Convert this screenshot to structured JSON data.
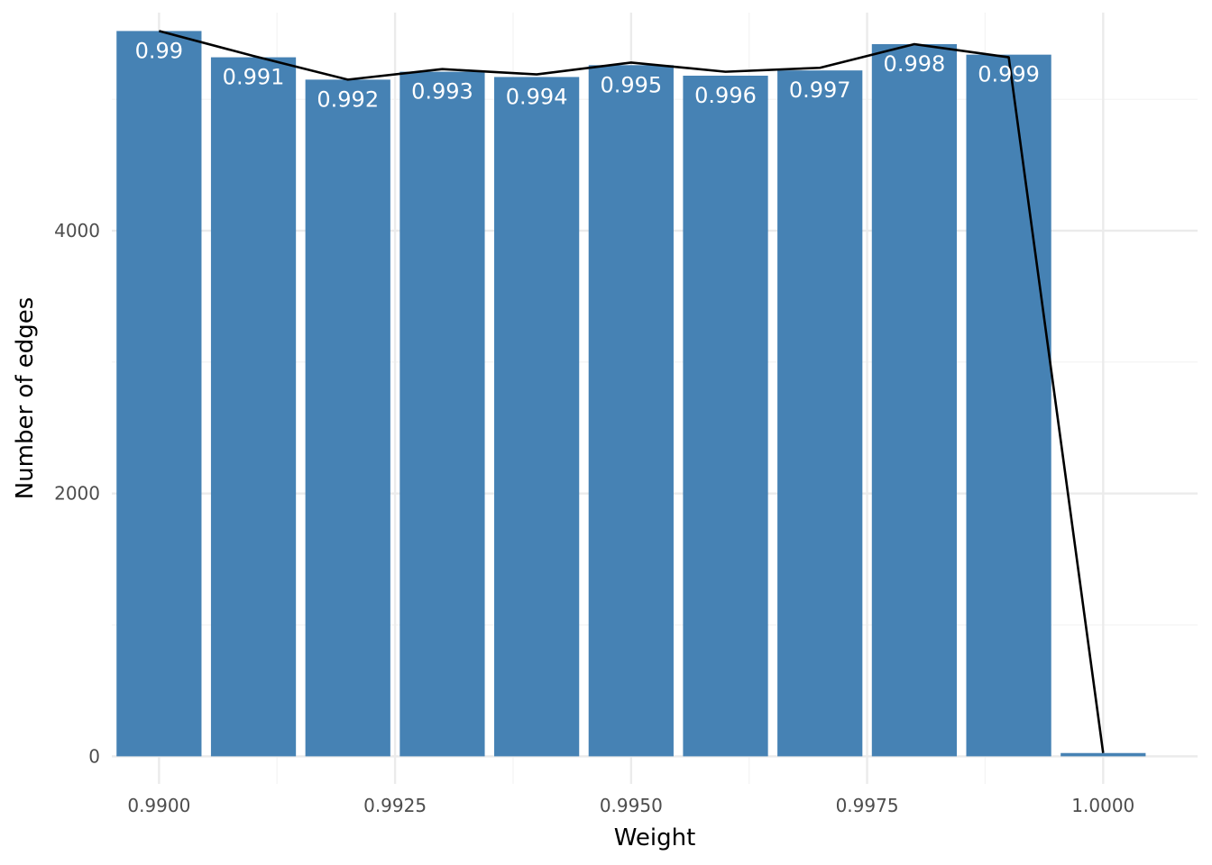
{
  "colors": {
    "bar": "#4682b4",
    "line": "#000000",
    "grid_major": "#ebebeb",
    "grid_minor": "#f4f4f4",
    "label": "#ffffff"
  },
  "chart_data": {
    "type": "bar",
    "title": "",
    "xlabel": "Weight",
    "ylabel": "Number of edges",
    "xlim": [
      0.9895,
      1.001
    ],
    "ylim": [
      -210,
      5660
    ],
    "x_ticks": [
      {
        "value": 0.99,
        "label": "0.9900"
      },
      {
        "value": 0.9925,
        "label": "0.9925"
      },
      {
        "value": 0.995,
        "label": "0.9950"
      },
      {
        "value": 0.9975,
        "label": "0.9975"
      },
      {
        "value": 1.0,
        "label": "1.0000"
      }
    ],
    "y_ticks": [
      {
        "value": 0,
        "label": "0"
      },
      {
        "value": 2000,
        "label": "2000"
      },
      {
        "value": 4000,
        "label": "4000"
      }
    ],
    "y_minor_ticks": [
      1000,
      3000,
      5000
    ],
    "x_minor_ticks": [
      0.99125,
      0.99375,
      0.99625,
      0.99875
    ],
    "bar_width": 0.0009,
    "grid": true,
    "legend": "none",
    "bars": [
      {
        "x": 0.99,
        "y": 5520,
        "label": "0.99"
      },
      {
        "x": 0.991,
        "y": 5320,
        "label": "0.991"
      },
      {
        "x": 0.992,
        "y": 5150,
        "label": "0.992"
      },
      {
        "x": 0.993,
        "y": 5210,
        "label": "0.993"
      },
      {
        "x": 0.994,
        "y": 5170,
        "label": "0.994"
      },
      {
        "x": 0.995,
        "y": 5260,
        "label": "0.995"
      },
      {
        "x": 0.996,
        "y": 5180,
        "label": "0.996"
      },
      {
        "x": 0.997,
        "y": 5220,
        "label": "0.997"
      },
      {
        "x": 0.998,
        "y": 5420,
        "label": "0.998"
      },
      {
        "x": 0.999,
        "y": 5340,
        "label": "0.999"
      },
      {
        "x": 1.0,
        "y": 25,
        "label": ""
      }
    ],
    "line": {
      "x": [
        0.99,
        0.991,
        0.992,
        0.993,
        0.994,
        0.995,
        0.996,
        0.997,
        0.998,
        0.999,
        1.0
      ],
      "y": [
        5520,
        5330,
        5150,
        5230,
        5190,
        5280,
        5210,
        5240,
        5420,
        5320,
        25
      ]
    }
  }
}
